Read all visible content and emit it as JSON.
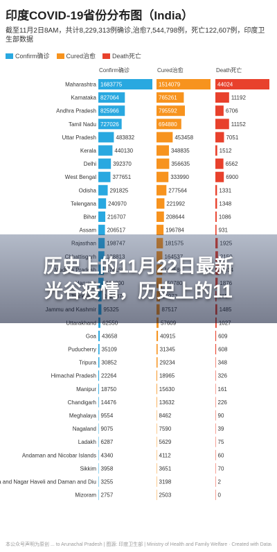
{
  "title": "印度COVID-19省份分布图（India）",
  "subtitle": "截至11月2日8AM，共计8,229,313例确诊,治愈7,544,798例，死亡122,607例，印度卫生部数据",
  "legend": [
    {
      "label": "Confirm确诊",
      "color": "#29a8e0"
    },
    {
      "label": "Cured治愈",
      "color": "#f7931e"
    },
    {
      "label": "Death死亡",
      "color": "#e8412c"
    }
  ],
  "overlay": {
    "line1": "历史上的11月22日最新",
    "line2": "光谷疫情，历史上的11"
  },
  "footer": "本公众号声明为原创 ... to Arunachal Pradesh | 图源: 印度卫生部 | Ministry of Health and Family Welfare · Created with Datawrapper",
  "chart_data": {
    "type": "table",
    "columns": [
      "Confirm确诊",
      "Cured治愈",
      "Death死亡"
    ],
    "rows": [
      {
        "state": "Maharashtra",
        "confirm": 1683775,
        "cured": 1514079,
        "death": 44024
      },
      {
        "state": "Karnataka",
        "confirm": 827064,
        "cured": 765261,
        "death": 11192
      },
      {
        "state": "Andhra Pradesh",
        "confirm": 825966,
        "cured": 795592,
        "death": 6706
      },
      {
        "state": "Tamil Nadu",
        "confirm": 727026,
        "cured": 694880,
        "death": 11152
      },
      {
        "state": "Uttar Pradesh",
        "confirm": 483832,
        "cured": 453458,
        "death": 7051
      },
      {
        "state": "Kerala",
        "confirm": 440130,
        "cured": 348835,
        "death": 1512
      },
      {
        "state": "Delhi",
        "confirm": 392370,
        "cured": 356635,
        "death": 6562
      },
      {
        "state": "West Bengal",
        "confirm": 377651,
        "cured": 333990,
        "death": 6900
      },
      {
        "state": "Odisha",
        "confirm": 291825,
        "cured": 277564,
        "death": 1331
      },
      {
        "state": "Telengana",
        "confirm": 240970,
        "cured": 221992,
        "death": 1348
      },
      {
        "state": "Bihar",
        "confirm": 216707,
        "cured": 208644,
        "death": 1086
      },
      {
        "state": "Assam",
        "confirm": 206517,
        "cured": 196784,
        "death": 931
      },
      {
        "state": "Rajasthan",
        "confirm": 198747,
        "cured": 181575,
        "death": 1925
      },
      {
        "state": "Chhattisgarh",
        "confirm": 188813,
        "cured": 164537,
        "death": 2150
      },
      {
        "state": "Madhya Pradesh",
        "confirm": 174158,
        "cured": 160586,
        "death": 3014
      },
      {
        "state": "Haryana",
        "confirm": 164800,
        "cured": 150780,
        "death": 1876
      },
      {
        "state": "Jharkhand",
        "confirm": 102087,
        "cured": 95973,
        "death": 885
      },
      {
        "state": "Jammu and Kashmir",
        "confirm": 95325,
        "cured": 87517,
        "death": 1485
      },
      {
        "state": "Uttarakhand",
        "confirm": 62550,
        "cured": 57609,
        "death": 1027
      },
      {
        "state": "Goa",
        "confirm": 43658,
        "cured": 40915,
        "death": 609
      },
      {
        "state": "Puducherry",
        "confirm": 35109,
        "cured": 31345,
        "death": 608
      },
      {
        "state": "Tripura",
        "confirm": 30852,
        "cured": 29234,
        "death": 348
      },
      {
        "state": "Himachal Pradesh",
        "confirm": 22264,
        "cured": 18965,
        "death": 326
      },
      {
        "state": "Manipur",
        "confirm": 18750,
        "cured": 15630,
        "death": 161
      },
      {
        "state": "Chandigarh",
        "confirm": 14476,
        "cured": 13632,
        "death": 226
      },
      {
        "state": "Meghalaya",
        "confirm": 9554,
        "cured": 8462,
        "death": 90
      },
      {
        "state": "Nagaland",
        "confirm": 9075,
        "cured": 7590,
        "death": 39
      },
      {
        "state": "Ladakh",
        "confirm": 6287,
        "cured": 5629,
        "death": 75
      },
      {
        "state": "Andaman and Nicobar Islands",
        "confirm": 4340,
        "cured": 4112,
        "death": 60
      },
      {
        "state": "Sikkim",
        "confirm": 3958,
        "cured": 3651,
        "death": 70
      },
      {
        "state": "Dadra and Nagar Haveli and Daman and Diu",
        "confirm": 3255,
        "cured": 3198,
        "death": 2
      },
      {
        "state": "Mizoram",
        "confirm": 2757,
        "cured": 2503,
        "death": 0
      }
    ]
  }
}
